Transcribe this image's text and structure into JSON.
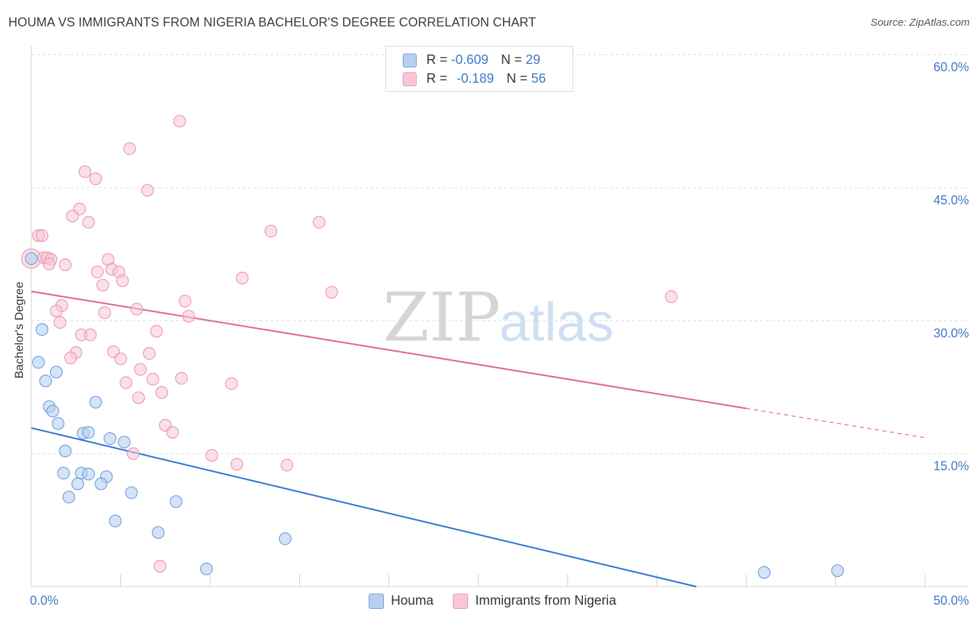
{
  "title": "HOUMA VS IMMIGRANTS FROM NIGERIA BACHELOR'S DEGREE CORRELATION CHART",
  "source": "Source: ZipAtlas.com",
  "watermark": {
    "zip": "ZIP",
    "atlas": "atlas"
  },
  "colors": {
    "houma_fill": "#b8d0f0",
    "houma_stroke": "#6e9ee0",
    "houma_line": "#3575d4",
    "nigeria_fill": "#f8c6d4",
    "nigeria_stroke": "#eb97b2",
    "nigeria_line": "#e06890",
    "axis_text": "#3f78c9",
    "grid": "#dcdcdc"
  },
  "legend": {
    "houma": {
      "r_label": "R = ",
      "r_value": "-0.609",
      "n_label": "N = ",
      "n_value": "29"
    },
    "nigeria": {
      "r_label": "R = ",
      "r_value": "-0.189",
      "n_label": "N = ",
      "n_value": "56"
    }
  },
  "bottom_legend": {
    "houma": "Houma",
    "nigeria": "Immigrants from Nigeria"
  },
  "chart_data": {
    "type": "scatter",
    "title": "HOUMA VS IMMIGRANTS FROM NIGERIA BACHELOR'S DEGREE CORRELATION CHART",
    "xlabel": "",
    "ylabel": "Bachelor's Degree",
    "xlim": [
      0,
      50
    ],
    "ylim": [
      0,
      63
    ],
    "x_tick_labels": [
      {
        "value": 0,
        "label": "0.0%"
      },
      {
        "value": 50,
        "label": "50.0%"
      }
    ],
    "y_tick_labels": [
      {
        "value": 15,
        "label": "15.0%"
      },
      {
        "value": 30,
        "label": "30.0%"
      },
      {
        "value": 45,
        "label": "45.0%"
      },
      {
        "value": 60,
        "label": "60.0%"
      }
    ],
    "series": [
      {
        "name": "Houma",
        "trend": {
          "x0": 0,
          "y0": 17.9,
          "x1": 37.2,
          "y1": 0
        },
        "points": [
          {
            "x": 0.0,
            "y": 37.0
          },
          {
            "x": 0.6,
            "y": 29.0
          },
          {
            "x": 0.4,
            "y": 25.3
          },
          {
            "x": 0.8,
            "y": 23.2
          },
          {
            "x": 1.4,
            "y": 24.2
          },
          {
            "x": 1.0,
            "y": 20.3
          },
          {
            "x": 1.2,
            "y": 19.8
          },
          {
            "x": 1.5,
            "y": 18.4
          },
          {
            "x": 3.6,
            "y": 20.8
          },
          {
            "x": 2.9,
            "y": 17.3
          },
          {
            "x": 3.2,
            "y": 17.4
          },
          {
            "x": 4.4,
            "y": 16.7
          },
          {
            "x": 5.2,
            "y": 16.3
          },
          {
            "x": 1.9,
            "y": 15.3
          },
          {
            "x": 1.8,
            "y": 12.8
          },
          {
            "x": 2.8,
            "y": 12.8
          },
          {
            "x": 3.2,
            "y": 12.7
          },
          {
            "x": 4.2,
            "y": 12.4
          },
          {
            "x": 2.6,
            "y": 11.6
          },
          {
            "x": 3.9,
            "y": 11.6
          },
          {
            "x": 2.1,
            "y": 10.1
          },
          {
            "x": 5.6,
            "y": 10.6
          },
          {
            "x": 8.1,
            "y": 9.6
          },
          {
            "x": 4.7,
            "y": 7.4
          },
          {
            "x": 7.1,
            "y": 6.1
          },
          {
            "x": 14.2,
            "y": 5.4
          },
          {
            "x": 9.8,
            "y": 2.0
          },
          {
            "x": 41.0,
            "y": 1.6
          },
          {
            "x": 45.1,
            "y": 1.8
          }
        ]
      },
      {
        "name": "Immigrants from Nigeria",
        "trend": {
          "x0": 0,
          "y0": 33.3,
          "x1": 40.0,
          "y1": 20.1
        },
        "trend_dashed_to": {
          "x": 50,
          "y": 16.8
        },
        "points": [
          {
            "x": 8.3,
            "y": 52.5
          },
          {
            "x": 5.5,
            "y": 49.4
          },
          {
            "x": 3.0,
            "y": 46.8
          },
          {
            "x": 3.6,
            "y": 46.0
          },
          {
            "x": 6.5,
            "y": 44.7
          },
          {
            "x": 2.7,
            "y": 42.6
          },
          {
            "x": 2.3,
            "y": 41.8
          },
          {
            "x": 3.2,
            "y": 41.1
          },
          {
            "x": 16.1,
            "y": 41.1
          },
          {
            "x": 13.4,
            "y": 40.1
          },
          {
            "x": 0.4,
            "y": 39.6
          },
          {
            "x": 0.6,
            "y": 39.6
          },
          {
            "x": 0.0,
            "y": 37.0
          },
          {
            "x": 0.7,
            "y": 37.1
          },
          {
            "x": 0.9,
            "y": 37.1
          },
          {
            "x": 1.1,
            "y": 36.9
          },
          {
            "x": 1.0,
            "y": 36.4
          },
          {
            "x": 1.9,
            "y": 36.3
          },
          {
            "x": 4.3,
            "y": 36.9
          },
          {
            "x": 4.5,
            "y": 35.8
          },
          {
            "x": 3.7,
            "y": 35.5
          },
          {
            "x": 4.9,
            "y": 35.5
          },
          {
            "x": 5.1,
            "y": 34.5
          },
          {
            "x": 11.8,
            "y": 34.8
          },
          {
            "x": 4.0,
            "y": 34.0
          },
          {
            "x": 16.8,
            "y": 33.2
          },
          {
            "x": 35.8,
            "y": 32.7
          },
          {
            "x": 8.6,
            "y": 32.2
          },
          {
            "x": 1.7,
            "y": 31.7
          },
          {
            "x": 1.4,
            "y": 31.1
          },
          {
            "x": 5.9,
            "y": 31.3
          },
          {
            "x": 4.1,
            "y": 30.9
          },
          {
            "x": 8.8,
            "y": 30.5
          },
          {
            "x": 1.6,
            "y": 29.8
          },
          {
            "x": 7.0,
            "y": 28.8
          },
          {
            "x": 2.8,
            "y": 28.4
          },
          {
            "x": 3.3,
            "y": 28.4
          },
          {
            "x": 2.5,
            "y": 26.4
          },
          {
            "x": 4.6,
            "y": 26.5
          },
          {
            "x": 6.6,
            "y": 26.3
          },
          {
            "x": 2.2,
            "y": 25.8
          },
          {
            "x": 5.0,
            "y": 25.7
          },
          {
            "x": 6.1,
            "y": 24.5
          },
          {
            "x": 6.8,
            "y": 23.4
          },
          {
            "x": 8.4,
            "y": 23.5
          },
          {
            "x": 5.3,
            "y": 23.0
          },
          {
            "x": 11.2,
            "y": 22.9
          },
          {
            "x": 7.3,
            "y": 21.9
          },
          {
            "x": 6.0,
            "y": 21.3
          },
          {
            "x": 7.5,
            "y": 18.2
          },
          {
            "x": 7.9,
            "y": 17.4
          },
          {
            "x": 5.7,
            "y": 15.0
          },
          {
            "x": 10.1,
            "y": 14.8
          },
          {
            "x": 11.5,
            "y": 13.8
          },
          {
            "x": 14.3,
            "y": 13.7
          },
          {
            "x": 7.2,
            "y": 2.3
          }
        ]
      }
    ]
  }
}
